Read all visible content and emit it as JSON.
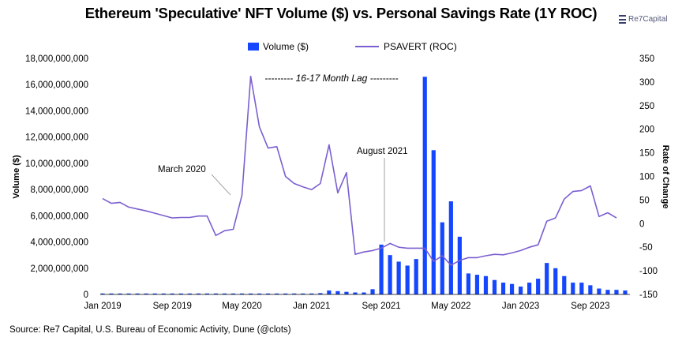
{
  "source": "Source: Re7 Capital, U.S. Bureau of Economic Activity, Dune (@clots)",
  "logo": {
    "text": "Re7Capital"
  },
  "colors": {
    "bar": "#1447ff",
    "line": "#7b5fd0"
  },
  "chart_data": {
    "type": "bar",
    "title": "Ethereum 'Speculative' NFT Volume ($) vs. Personal Savings Rate (1Y ROC)",
    "ylabel": "Volume ($)",
    "y2label": "Rate of Change",
    "ylim": [
      0,
      18000000000
    ],
    "y2lim": [
      -150,
      350
    ],
    "yticks": [
      "0",
      "2,000,000,000",
      "4,000,000,000",
      "6,000,000,000",
      "8,000,000,000",
      "10,000,000,000",
      "12,000,000,000",
      "14,000,000,000",
      "16,000,000,000",
      "18,000,000,000"
    ],
    "y2ticks": [
      "-150",
      "-100",
      "-50",
      "0",
      "50",
      "100",
      "150",
      "200",
      "250",
      "300",
      "350"
    ],
    "xticks": [
      {
        "label": "Jan 2019",
        "index": 0
      },
      {
        "label": "Sep 2019",
        "index": 8
      },
      {
        "label": "May 2020",
        "index": 16
      },
      {
        "label": "Jan 2021",
        "index": 24
      },
      {
        "label": "Sep 2021",
        "index": 32
      },
      {
        "label": "May 2022",
        "index": 40
      },
      {
        "label": "Jan 2023",
        "index": 48
      },
      {
        "label": "Sep 2023",
        "index": 56
      }
    ],
    "legend": [
      "Volume ($)",
      "PSAVERT (ROC)"
    ],
    "grid": false,
    "series": [
      {
        "name": "Volume ($)",
        "kind": "bar",
        "axis": "left",
        "values": [
          5000000,
          5000000,
          5000000,
          5000000,
          5000000,
          5000000,
          5000000,
          5000000,
          5000000,
          5000000,
          5000000,
          5000000,
          5000000,
          5000000,
          5000000,
          5000000,
          5000000,
          5000000,
          5000000,
          5000000,
          5000000,
          10000000,
          20000000,
          20000000,
          20000000,
          100000000,
          300000000,
          250000000,
          200000000,
          150000000,
          150000000,
          400000000,
          3800000000,
          3000000000,
          2500000000,
          2200000000,
          2700000000,
          16600000000,
          11000000000,
          5500000000,
          7100000000,
          4400000000,
          1600000000,
          1500000000,
          1400000000,
          1100000000,
          900000000,
          800000000,
          600000000,
          900000000,
          1200000000,
          2400000000,
          2000000000,
          1400000000,
          900000000,
          900000000,
          700000000,
          450000000,
          350000000,
          350000000,
          300000000
        ]
      },
      {
        "name": "PSAVERT (ROC)",
        "kind": "line",
        "axis": "right",
        "values": [
          53,
          43,
          45,
          35,
          31,
          27,
          22,
          17,
          12,
          13,
          13,
          16,
          16,
          -25,
          -15,
          -12,
          60,
          312,
          205,
          160,
          163,
          100,
          85,
          78,
          72,
          85,
          167,
          65,
          108,
          -65,
          -60,
          -57,
          -52,
          -42,
          -50,
          -52,
          -52,
          -52,
          -80,
          -68,
          -88,
          -78,
          -72,
          -72,
          -68,
          -65,
          -66,
          -62,
          -57,
          -50,
          -45,
          5,
          12,
          52,
          68,
          70,
          80,
          15,
          23,
          12
        ]
      }
    ]
  },
  "annotations": {
    "march2020": "March 2020",
    "august2021": "August 2021",
    "lag": "---------   16-17 Month Lag   ---------"
  }
}
